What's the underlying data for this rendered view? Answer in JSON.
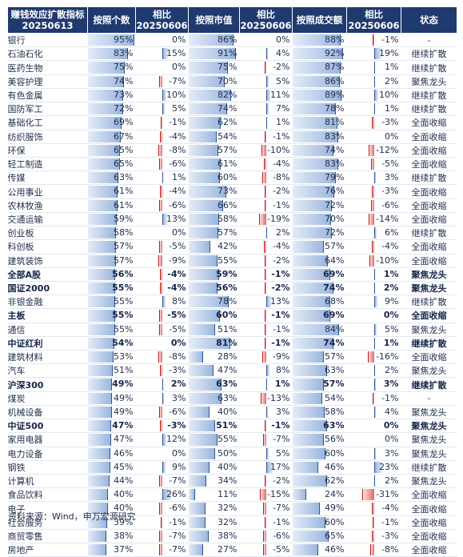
{
  "header": {
    "c0_line1": "赚钱效应扩散指标",
    "c0_line2": "20250613",
    "c1": "按照个数",
    "c2_line1": "相比",
    "c2_line2": "20250606",
    "c3": "按照市值",
    "c4_line1": "相比",
    "c4_line2": "20250606",
    "c5": "按照成交额",
    "c6_line1": "相比",
    "c6_line2": "20250606",
    "c7": "状态"
  },
  "rows": [
    {
      "name": "银行",
      "count": "95%",
      "count_chg": "0%",
      "mcap": "86%",
      "mcap_chg": "0%",
      "turnover": "88%",
      "turnover_chg": "-1%",
      "status": "-",
      "bold": false
    },
    {
      "name": "石油石化",
      "count": "83%",
      "count_chg": "15%",
      "mcap": "91%",
      "mcap_chg": "4%",
      "turnover": "92%",
      "turnover_chg": "19%",
      "status": "继续扩散",
      "bold": false
    },
    {
      "name": "医药生物",
      "count": "75%",
      "count_chg": "0%",
      "mcap": "75%",
      "mcap_chg": "-2%",
      "turnover": "87%",
      "turnover_chg": "1%",
      "status": "继续扩散",
      "bold": false
    },
    {
      "name": "美容护理",
      "count": "74%",
      "count_chg": "-7%",
      "mcap": "70%",
      "mcap_chg": "5%",
      "turnover": "86%",
      "turnover_chg": "2%",
      "status": "聚焦龙头",
      "bold": false
    },
    {
      "name": "有色金属",
      "count": "73%",
      "count_chg": "10%",
      "mcap": "82%",
      "mcap_chg": "11%",
      "turnover": "89%",
      "turnover_chg": "10%",
      "status": "继续扩散",
      "bold": false
    },
    {
      "name": "国防军工",
      "count": "72%",
      "count_chg": "5%",
      "mcap": "74%",
      "mcap_chg": "7%",
      "turnover": "78%",
      "turnover_chg": "1%",
      "status": "继续扩散",
      "bold": false
    },
    {
      "name": "基础化工",
      "count": "69%",
      "count_chg": "-1%",
      "mcap": "62%",
      "mcap_chg": "1%",
      "turnover": "81%",
      "turnover_chg": "-3%",
      "status": "全面收缩",
      "bold": false
    },
    {
      "name": "纺织服饰",
      "count": "67%",
      "count_chg": "-4%",
      "mcap": "54%",
      "mcap_chg": "-1%",
      "turnover": "83%",
      "turnover_chg": "0%",
      "status": "全面收缩",
      "bold": false
    },
    {
      "name": "环保",
      "count": "65%",
      "count_chg": "-8%",
      "mcap": "57%",
      "mcap_chg": "-10%",
      "turnover": "74%",
      "turnover_chg": "-12%",
      "status": "全面收缩",
      "bold": false
    },
    {
      "name": "轻工制造",
      "count": "65%",
      "count_chg": "-6%",
      "mcap": "61%",
      "mcap_chg": "-4%",
      "turnover": "83%",
      "turnover_chg": "-5%",
      "status": "全面收缩",
      "bold": false
    },
    {
      "name": "传媒",
      "count": "63%",
      "count_chg": "1%",
      "mcap": "60%",
      "mcap_chg": "-8%",
      "turnover": "79%",
      "turnover_chg": "3%",
      "status": "继续扩散",
      "bold": false
    },
    {
      "name": "公用事业",
      "count": "61%",
      "count_chg": "-4%",
      "mcap": "73%",
      "mcap_chg": "-2%",
      "turnover": "76%",
      "turnover_chg": "-3%",
      "status": "全面收缩",
      "bold": false
    },
    {
      "name": "农林牧渔",
      "count": "61%",
      "count_chg": "-6%",
      "mcap": "66%",
      "mcap_chg": "-1%",
      "turnover": "72%",
      "turnover_chg": "-6%",
      "status": "全面收缩",
      "bold": false
    },
    {
      "name": "交通运输",
      "count": "59%",
      "count_chg": "13%",
      "mcap": "58%",
      "mcap_chg": "-19%",
      "turnover": "70%",
      "turnover_chg": "-14%",
      "status": "全面收缩",
      "bold": false
    },
    {
      "name": "创业板",
      "count": "58%",
      "count_chg": "0%",
      "mcap": "57%",
      "mcap_chg": "2%",
      "turnover": "72%",
      "turnover_chg": "6%",
      "status": "继续扩散",
      "bold": false
    },
    {
      "name": "科创板",
      "count": "57%",
      "count_chg": "-5%",
      "mcap": "42%",
      "mcap_chg": "-4%",
      "turnover": "57%",
      "turnover_chg": "-4%",
      "status": "全面收缩",
      "bold": false
    },
    {
      "name": "建筑装饰",
      "count": "57%",
      "count_chg": "-9%",
      "mcap": "55%",
      "mcap_chg": "-2%",
      "turnover": "64%",
      "turnover_chg": "-10%",
      "status": "全面收缩",
      "bold": false
    },
    {
      "name": "全部A股",
      "count": "56%",
      "count_chg": "-4%",
      "mcap": "59%",
      "mcap_chg": "-1%",
      "turnover": "69%",
      "turnover_chg": "1%",
      "status": "聚焦龙头",
      "bold": true
    },
    {
      "name": "国证2000",
      "count": "55%",
      "count_chg": "-4%",
      "mcap": "56%",
      "mcap_chg": "-2%",
      "turnover": "74%",
      "turnover_chg": "2%",
      "status": "聚焦龙头",
      "bold": true
    },
    {
      "name": "非银金融",
      "count": "55%",
      "count_chg": "8%",
      "mcap": "78%",
      "mcap_chg": "13%",
      "turnover": "68%",
      "turnover_chg": "9%",
      "status": "继续扩散",
      "bold": false
    },
    {
      "name": "主板",
      "count": "55%",
      "count_chg": "-5%",
      "mcap": "60%",
      "mcap_chg": "-1%",
      "turnover": "69%",
      "turnover_chg": "0%",
      "status": "全面收缩",
      "bold": true
    },
    {
      "name": "通信",
      "count": "55%",
      "count_chg": "-5%",
      "mcap": "51%",
      "mcap_chg": "-1%",
      "turnover": "84%",
      "turnover_chg": "5%",
      "status": "聚焦龙头",
      "bold": false
    },
    {
      "name": "中证红利",
      "count": "54%",
      "count_chg": "0%",
      "mcap": "81%",
      "mcap_chg": "-1%",
      "turnover": "74%",
      "turnover_chg": "1%",
      "status": "继续扩散",
      "bold": true
    },
    {
      "name": "建筑材料",
      "count": "53%",
      "count_chg": "-8%",
      "mcap": "28%",
      "mcap_chg": "-9%",
      "turnover": "57%",
      "turnover_chg": "-16%",
      "status": "全面收缩",
      "bold": false
    },
    {
      "name": "汽车",
      "count": "51%",
      "count_chg": "-3%",
      "mcap": "47%",
      "mcap_chg": "8%",
      "turnover": "63%",
      "turnover_chg": "2%",
      "status": "聚焦龙头",
      "bold": false
    },
    {
      "name": "沪深300",
      "count": "49%",
      "count_chg": "2%",
      "mcap": "63%",
      "mcap_chg": "1%",
      "turnover": "57%",
      "turnover_chg": "3%",
      "status": "继续扩散",
      "bold": true
    },
    {
      "name": "煤炭",
      "count": "49%",
      "count_chg": "3%",
      "mcap": "63%",
      "mcap_chg": "-13%",
      "turnover": "54%",
      "turnover_chg": "-1%",
      "status": "-",
      "bold": false
    },
    {
      "name": "机械设备",
      "count": "49%",
      "count_chg": "-6%",
      "mcap": "40%",
      "mcap_chg": "3%",
      "turnover": "58%",
      "turnover_chg": "4%",
      "status": "聚焦龙头",
      "bold": false
    },
    {
      "name": "中证500",
      "count": "47%",
      "count_chg": "-3%",
      "mcap": "51%",
      "mcap_chg": "-1%",
      "turnover": "63%",
      "turnover_chg": "0%",
      "status": "聚焦龙头",
      "bold": true
    },
    {
      "name": "家用电器",
      "count": "47%",
      "count_chg": "12%",
      "mcap": "55%",
      "mcap_chg": "-7%",
      "turnover": "56%",
      "turnover_chg": "0%",
      "status": "聚焦龙头",
      "bold": false
    },
    {
      "name": "电力设备",
      "count": "46%",
      "count_chg": "0%",
      "mcap": "50%",
      "mcap_chg": "5%",
      "turnover": "60%",
      "turnover_chg": "3%",
      "status": "聚焦龙头",
      "bold": false
    },
    {
      "name": "钢铁",
      "count": "45%",
      "count_chg": "9%",
      "mcap": "40%",
      "mcap_chg": "17%",
      "turnover": "46%",
      "turnover_chg": "23%",
      "status": "继续扩散",
      "bold": false
    },
    {
      "name": "计算机",
      "count": "44%",
      "count_chg": "-7%",
      "mcap": "34%",
      "mcap_chg": "-2%",
      "turnover": "62%",
      "turnover_chg": "2%",
      "status": "聚焦龙头",
      "bold": false
    },
    {
      "name": "食品饮料",
      "count": "40%",
      "count_chg": "26%",
      "mcap": "11%",
      "mcap_chg": "-15%",
      "turnover": "24%",
      "turnover_chg": "-31%",
      "status": "全面收缩",
      "bold": false
    },
    {
      "name": "电子",
      "count": "40%",
      "count_chg": "-6%",
      "mcap": "32%",
      "mcap_chg": "-7%",
      "turnover": "49%",
      "turnover_chg": "-4%",
      "status": "全面收缩",
      "bold": false
    },
    {
      "name": "社会服务",
      "count": "39%",
      "count_chg": "-1%",
      "mcap": "32%",
      "mcap_chg": "-1%",
      "turnover": "60%",
      "turnover_chg": "-1%",
      "status": "全面收缩",
      "bold": false
    },
    {
      "name": "商贸零售",
      "count": "38%",
      "count_chg": "-7%",
      "mcap": "38%",
      "mcap_chg": "-6%",
      "turnover": "65%",
      "turnover_chg": "-3%",
      "status": "全面收缩",
      "bold": false
    },
    {
      "name": "房地产",
      "count": "37%",
      "count_chg": "-7%",
      "mcap": "27%",
      "mcap_chg": "-5%",
      "turnover": "46%",
      "turnover_chg": "-8%",
      "status": "全面收缩",
      "bold": false
    }
  ],
  "source": "资料来源：Wind，申万宏源研究",
  "colors": {
    "header_bg": "#1f3a6e",
    "bar_blue": "#9cb6dd",
    "bar_red": "#e06868",
    "text": "#1f2d4d"
  }
}
